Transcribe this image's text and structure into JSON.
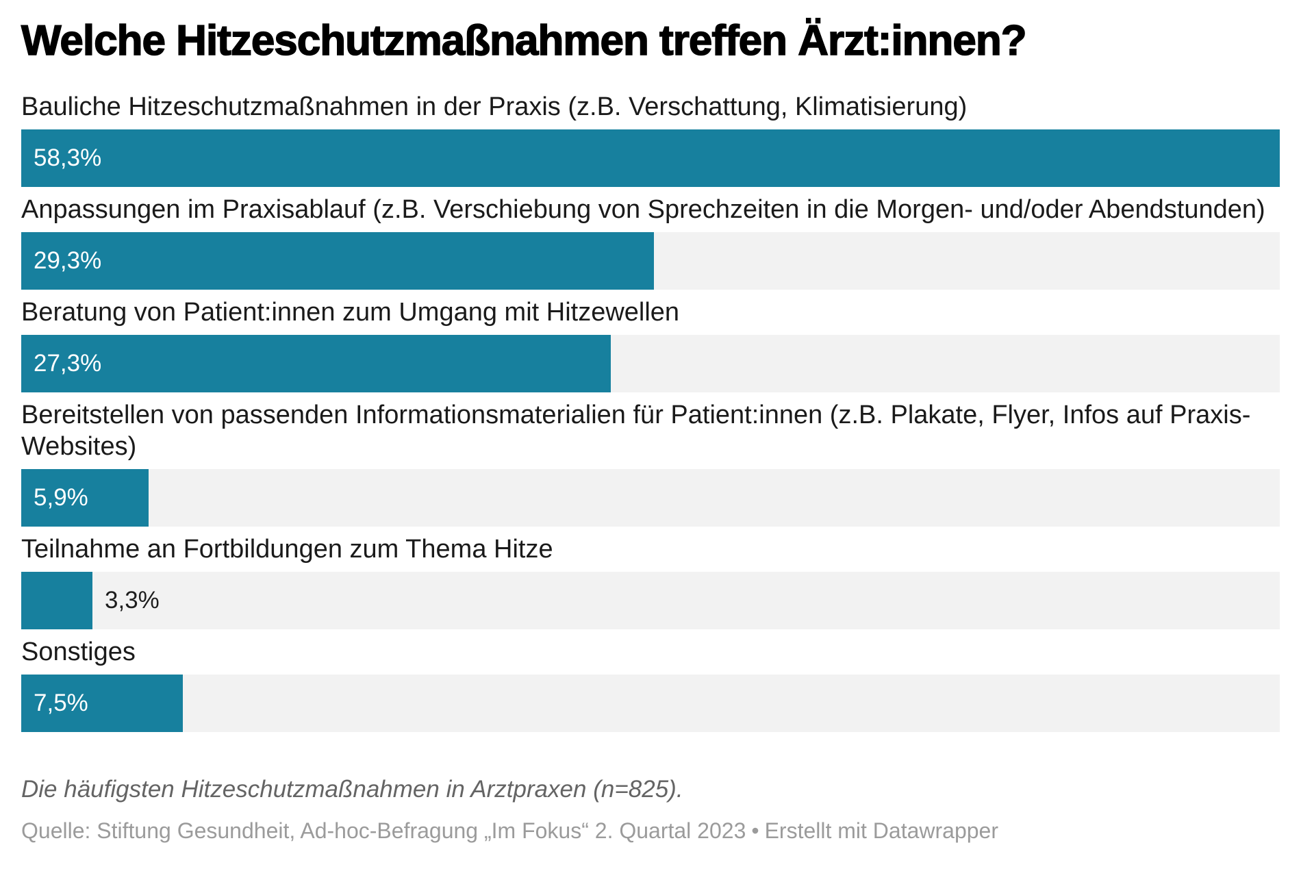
{
  "chart_data": {
    "type": "bar",
    "orientation": "horizontal",
    "title": "Welche Hitzeschutzmaßnahmen treffen Ärzt:innen?",
    "categories": [
      "Bauliche Hitzeschutzmaßnahmen in der Praxis (z.B. Verschattung, Klimatisierung)",
      "Anpassungen im Praxisablauf (z.B. Verschiebung von Sprechzeiten in die Morgen- und/oder Abendstunden)",
      "Beratung von Patient:innen zum Umgang mit Hitzewellen",
      "Bereitstellen von passenden Informationsmaterialien für Patient:innen (z.B. Plakate, Flyer, Infos auf Praxis-Websites)",
      "Teilnahme an Fortbildungen zum Thema Hitze",
      "Sonstiges"
    ],
    "values": [
      58.3,
      29.3,
      27.3,
      5.9,
      3.3,
      7.5
    ],
    "value_labels": [
      "58,3%",
      "29,3%",
      "27,3%",
      "5,9%",
      "3,3%",
      "7,5%"
    ],
    "value_label_positions": [
      "inside",
      "inside",
      "inside",
      "inside",
      "outside",
      "inside"
    ],
    "unit": "%",
    "xlim": [
      0,
      58.3
    ],
    "grid": "off",
    "legend": "none",
    "bar_color": "#17809E",
    "track_color": "#F2F2F2"
  },
  "footer": {
    "notes": "Die häufigsten Hitzeschutzmaßnahmen in Arztpraxen (n=825).",
    "source_prefix": "Quelle: Stiftung Gesundheit, Ad-hoc-Befragung „Im Fokus“ 2. Quartal 2023",
    "separator": "•",
    "attribution": "Erstellt mit Datawrapper"
  }
}
